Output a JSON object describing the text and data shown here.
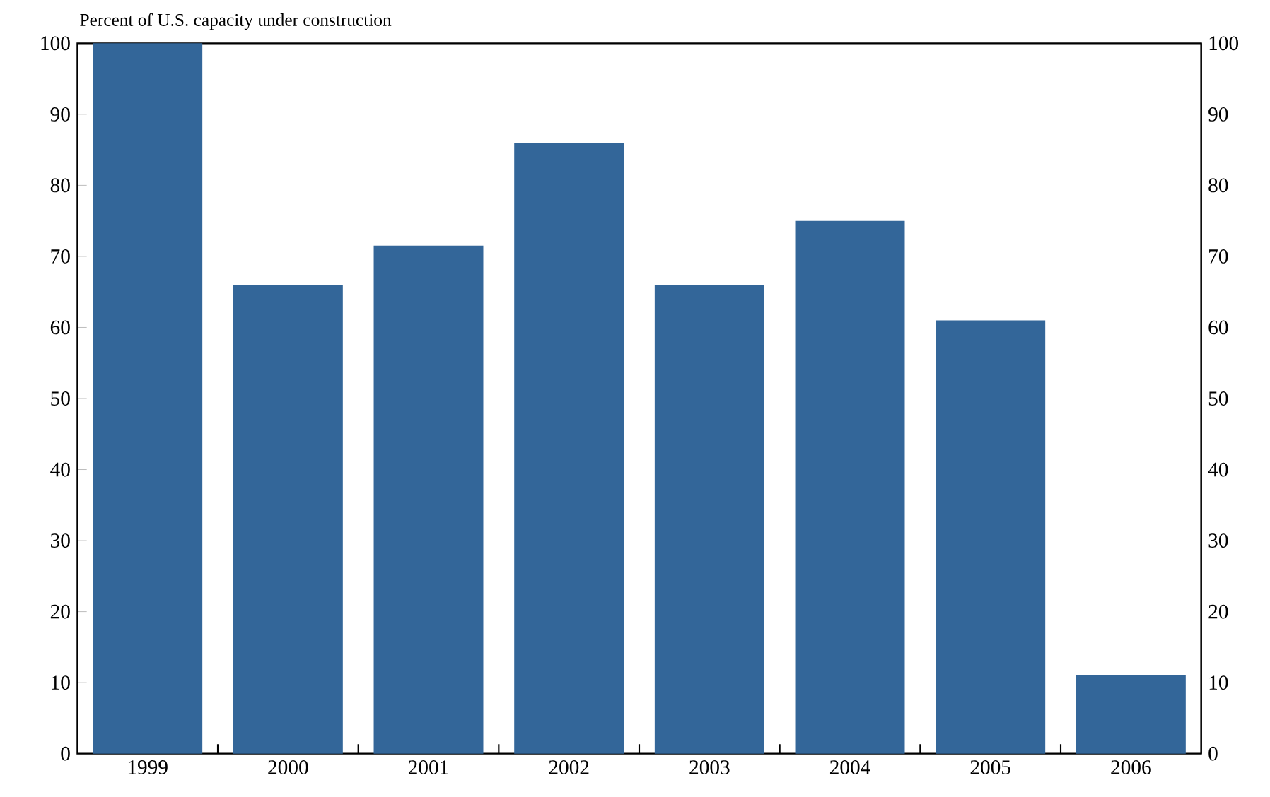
{
  "chart_data": {
    "type": "bar",
    "title": "Percent of U.S. capacity under construction",
    "categories": [
      "1999",
      "2000",
      "2001",
      "2002",
      "2003",
      "2004",
      "2005",
      "2006"
    ],
    "values": [
      100,
      66,
      71.5,
      86,
      66,
      75,
      61,
      11
    ],
    "color": "#336699",
    "ylim": [
      0,
      100
    ],
    "yticks": [
      0,
      10,
      20,
      30,
      40,
      50,
      60,
      70,
      80,
      90,
      100
    ],
    "y2lim": [
      0,
      100
    ],
    "y2ticks": [
      0,
      10,
      20,
      30,
      40,
      50,
      60,
      70,
      80,
      90,
      100
    ]
  }
}
